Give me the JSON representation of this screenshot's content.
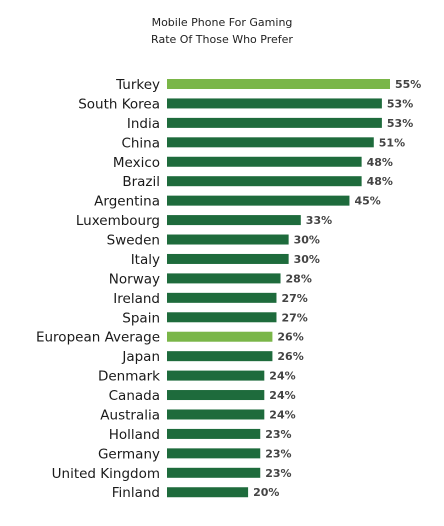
{
  "chart_data": {
    "type": "bar",
    "orientation": "horizontal",
    "title": "Mobile Phone For Gaming",
    "subtitle": "Rate Of Those Who Prefer",
    "categories": [
      "Turkey",
      "South Korea",
      "India",
      "China",
      "Mexico",
      "Brazil",
      "Argentina",
      "Luxembourg",
      "Sweden",
      "Italy",
      "Norway",
      "Ireland",
      "Spain",
      "European Average",
      "Japan",
      "Denmark",
      "Canada",
      "Australia",
      "Holland",
      "Germany",
      "United Kingdom",
      "Finland"
    ],
    "values": [
      55,
      53,
      53,
      51,
      48,
      48,
      45,
      33,
      30,
      30,
      28,
      27,
      27,
      26,
      26,
      24,
      24,
      24,
      23,
      23,
      23,
      20
    ],
    "value_labels": [
      "55%",
      "53%",
      "53%",
      "51%",
      "48%",
      "48%",
      "45%",
      "33%",
      "30%",
      "30%",
      "28%",
      "27%",
      "27%",
      "26%",
      "26%",
      "24%",
      "24%",
      "24%",
      "23%",
      "23%",
      "23%",
      "20%"
    ],
    "highlighted": [
      "Turkey",
      "European Average"
    ],
    "xlim": [
      0,
      55
    ],
    "grid": false,
    "colors": {
      "default_bar": "#1e6b3c",
      "highlight_bar": "#7ab648"
    }
  }
}
